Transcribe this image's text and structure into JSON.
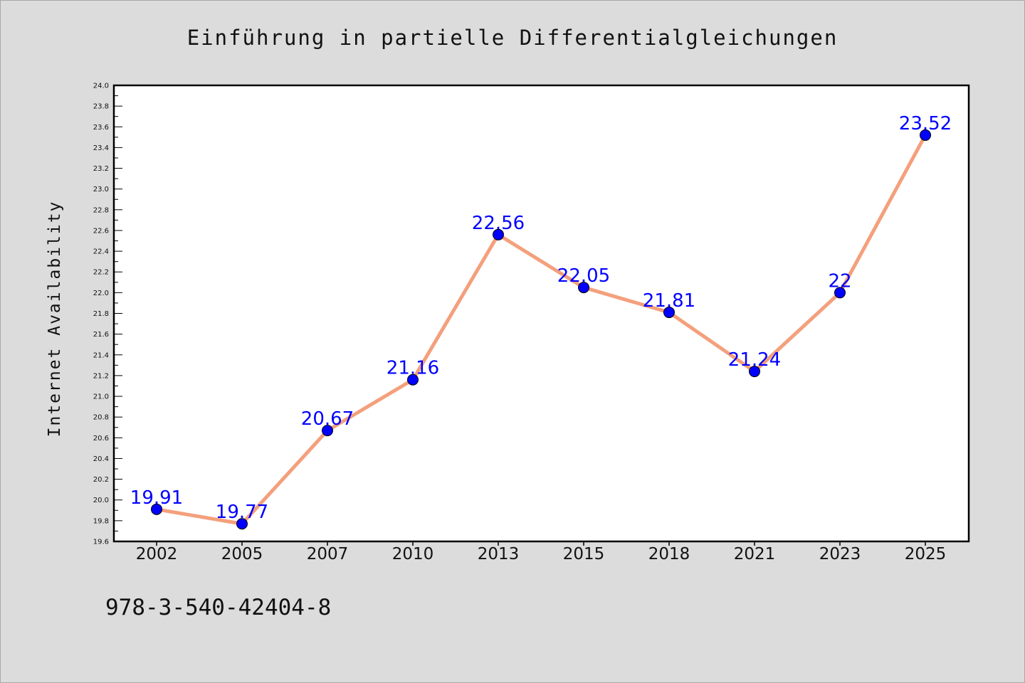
{
  "chart_data": {
    "type": "line",
    "title": "Einführung in partielle Differentialgleichungen",
    "xlabel": "",
    "ylabel": "Internet Availability",
    "categories": [
      "2002",
      "2005",
      "2007",
      "2010",
      "2013",
      "2015",
      "2018",
      "2021",
      "2023",
      "2025"
    ],
    "series": [
      {
        "values": [
          19.91,
          19.77,
          20.67,
          21.16,
          22.56,
          22.05,
          21.81,
          21.24,
          22,
          23.52
        ],
        "data_labels": [
          "19.91",
          "19.77",
          "20.67",
          "21.16",
          "22.56",
          "22.05",
          "21.81",
          "21.24",
          "22",
          "23.52"
        ],
        "line_color": "#f4a07c",
        "marker_color": "#0000ff",
        "label_color": "#0000ff"
      }
    ],
    "ylim": [
      19.6,
      24.0
    ],
    "yticks": [
      "19.6",
      "19.8",
      "20.0",
      "20.2",
      "20.4",
      "20.6",
      "20.8",
      "21.0",
      "21.2",
      "21.4",
      "21.6",
      "21.8",
      "22.0",
      "22.2",
      "22.4",
      "22.6",
      "22.8",
      "23.0",
      "23.2",
      "23.4",
      "23.6",
      "23.8",
      "24.0"
    ],
    "grid": false,
    "legend": "none"
  },
  "footer": {
    "isbn": "978-3-540-42404-8"
  },
  "colors": {
    "background": "#dcdcdc",
    "plot_background": "#ffffff",
    "axis": "#000000"
  }
}
